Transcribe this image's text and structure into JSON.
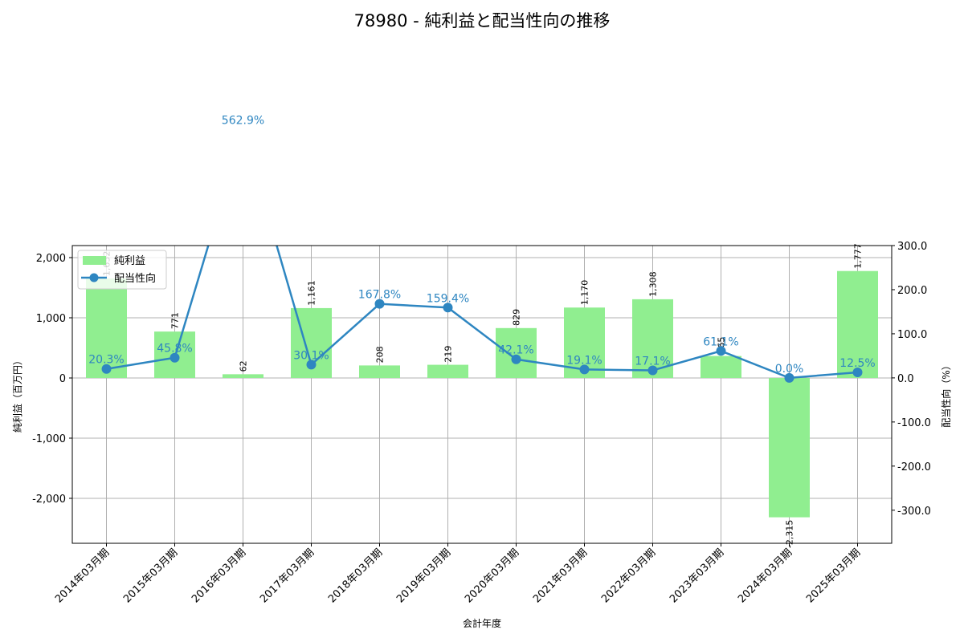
{
  "chart_data": {
    "type": "bar+line",
    "title": "78980 - 純利益と配当性向の推移",
    "xlabel": "会計年度",
    "ylabel": "純利益（百万円）",
    "y2label": "配当性向（%）",
    "categories": [
      "2014年03月期",
      "2015年03月期",
      "2016年03月期",
      "2017年03月期",
      "2018年03月期",
      "2019年03月期",
      "2020年03月期",
      "2021年03月期",
      "2022年03月期",
      "2023年03月期",
      "2024年03月期",
      "2025年03月期"
    ],
    "series": [
      {
        "name": "純利益",
        "type": "bar",
        "axis": "left",
        "color": "#90ee90",
        "values": [
          1652,
          771,
          62,
          1161,
          208,
          219,
          829,
          1170,
          1308,
          365,
          -2315,
          1777
        ],
        "labels": [
          "1,652",
          "771",
          "62",
          "1,161",
          "208",
          "219",
          "829",
          "1,170",
          "1,308",
          "365",
          "-2,315",
          "1,777"
        ]
      },
      {
        "name": "配当性向",
        "type": "line",
        "axis": "right",
        "color": "#2e86c1",
        "values": [
          20.3,
          45.8,
          562.9,
          30.1,
          167.8,
          159.4,
          42.1,
          19.1,
          17.1,
          61.1,
          0.0,
          12.5
        ],
        "labels": [
          "20.3%",
          "45.8%",
          "562.9%",
          "30.1%",
          "167.8%",
          "159.4%",
          "42.1%",
          "19.1%",
          "17.1%",
          "61.1%",
          "0.0%",
          "12.5%"
        ]
      }
    ],
    "yticks": [
      -2000,
      -1000,
      0,
      1000,
      2000
    ],
    "ytick_labels": [
      "-2,000",
      "-1,000",
      "0",
      "1,000",
      "2,000"
    ],
    "ylim": [
      -2747,
      2200
    ],
    "y2ticks": [
      -300,
      -200,
      -100,
      0,
      100,
      200,
      300
    ],
    "y2tick_labels": [
      "-300.0",
      "-200.0",
      "-100.0",
      "0.0",
      "100.0",
      "200.0",
      "300.0"
    ],
    "y2lim": [
      -375,
      300
    ],
    "grid": true,
    "legend": {
      "position": "upper left",
      "entries": [
        "純利益",
        "配当性向"
      ]
    }
  }
}
